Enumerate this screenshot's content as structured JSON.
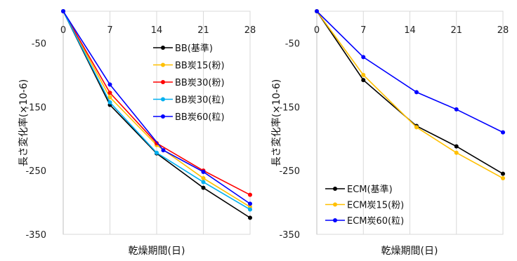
{
  "chart_data": [
    {
      "type": "line",
      "xlabel": "乾燥期間(日)",
      "ylabel": "長さ変化率(×10-6)",
      "xlim": [
        0,
        28
      ],
      "ylim": [
        -350,
        0
      ],
      "xticks": [
        0,
        7,
        14,
        21,
        28
      ],
      "yticks": [
        -50,
        -150,
        -250,
        -350
      ],
      "legend": "right",
      "series": [
        {
          "name": "BB(基準)",
          "color": "#000000",
          "x": [
            0,
            7,
            14,
            21,
            28
          ],
          "y": [
            0,
            -147,
            -223,
            -277,
            -324
          ]
        },
        {
          "name": "BB炭15(粉)",
          "color": "#FFC000",
          "x": [
            0,
            7,
            14,
            21,
            28
          ],
          "y": [
            0,
            -135,
            -210,
            -262,
            -307
          ]
        },
        {
          "name": "BB炭30(粉)",
          "color": "#FF0000",
          "x": [
            0,
            7,
            14,
            21,
            28
          ],
          "y": [
            0,
            -128,
            -207,
            -250,
            -288
          ]
        },
        {
          "name": "BB炭30(粒)",
          "color": "#00B0F0",
          "x": [
            0,
            7,
            14,
            21,
            28
          ],
          "y": [
            0,
            -143,
            -222,
            -268,
            -311
          ]
        },
        {
          "name": "BB炭60(粒)",
          "color": "#0000FF",
          "x": [
            0,
            7,
            15,
            21,
            28
          ],
          "y": [
            0,
            -115,
            -218,
            -252,
            -302
          ]
        }
      ]
    },
    {
      "type": "line",
      "xlabel": "乾燥期間(日)",
      "ylabel": "長さ変化率(×10-6)",
      "xlim": [
        0,
        28
      ],
      "ylim": [
        -350,
        0
      ],
      "xticks": [
        0,
        7,
        14,
        21,
        28
      ],
      "yticks": [
        -50,
        -150,
        -250,
        -350
      ],
      "legend": "bottom-left",
      "series": [
        {
          "name": "ECM(基準)",
          "color": "#000000",
          "x": [
            0,
            7,
            15,
            21,
            28
          ],
          "y": [
            0,
            -108,
            -180,
            -212,
            -255
          ]
        },
        {
          "name": "ECM炭15(粉)",
          "color": "#FFC000",
          "x": [
            0,
            7,
            15,
            21,
            28
          ],
          "y": [
            0,
            -100,
            -182,
            -222,
            -262
          ]
        },
        {
          "name": "ECM炭60(粒)",
          "color": "#0000FF",
          "x": [
            0,
            7,
            15,
            21,
            28
          ],
          "y": [
            0,
            -72,
            -127,
            -154,
            -190
          ]
        }
      ]
    }
  ]
}
